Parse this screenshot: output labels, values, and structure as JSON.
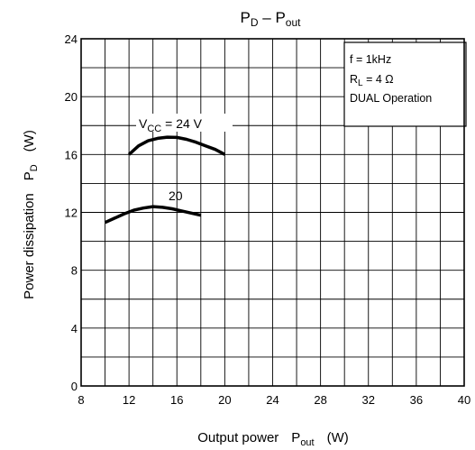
{
  "chart_data": {
    "type": "line",
    "title": {
      "main": "P",
      "main_sub": "D",
      "dash": " – ",
      "rest": "P",
      "rest_sub": "out"
    },
    "xlabel": {
      "text": "Output power",
      "sym": "P",
      "sym_sub": "out",
      "unit": "(W)"
    },
    "ylabel": {
      "text": "Power dissipation",
      "sym": "P",
      "sym_sub": "D",
      "unit": "(W)"
    },
    "xlim": [
      8,
      40
    ],
    "ylim": [
      0,
      24
    ],
    "x_ticks": [
      "8",
      "12",
      "16",
      "20",
      "24",
      "28",
      "32",
      "36",
      "40"
    ],
    "y_ticks": [
      "0",
      "4",
      "8",
      "12",
      "16",
      "20",
      "24"
    ],
    "grid": true,
    "annotation": {
      "line1": "f = 1kHz",
      "line2_main": "R",
      "line2_sub": "L",
      "line2_rest": " = 4 Ω",
      "line3": "DUAL Operation"
    },
    "series": [
      {
        "label_main": "V",
        "label_sub": "CC",
        "label_rest": " = 24  V",
        "points": [
          [
            12.0,
            16.0
          ],
          [
            12.8,
            16.6
          ],
          [
            13.6,
            16.95
          ],
          [
            14.4,
            17.12
          ],
          [
            15.2,
            17.2
          ],
          [
            16.0,
            17.18
          ],
          [
            16.8,
            17.05
          ],
          [
            17.6,
            16.85
          ],
          [
            18.4,
            16.6
          ],
          [
            19.2,
            16.35
          ],
          [
            20.0,
            16.0
          ]
        ]
      },
      {
        "label_main": "20",
        "label_sub": "",
        "label_rest": "",
        "points": [
          [
            10.0,
            11.3
          ],
          [
            10.8,
            11.6
          ],
          [
            11.6,
            11.9
          ],
          [
            12.4,
            12.15
          ],
          [
            13.2,
            12.3
          ],
          [
            14.0,
            12.4
          ],
          [
            14.8,
            12.35
          ],
          [
            15.6,
            12.25
          ],
          [
            16.4,
            12.1
          ],
          [
            17.2,
            11.95
          ],
          [
            18.0,
            11.8
          ]
        ]
      }
    ]
  }
}
